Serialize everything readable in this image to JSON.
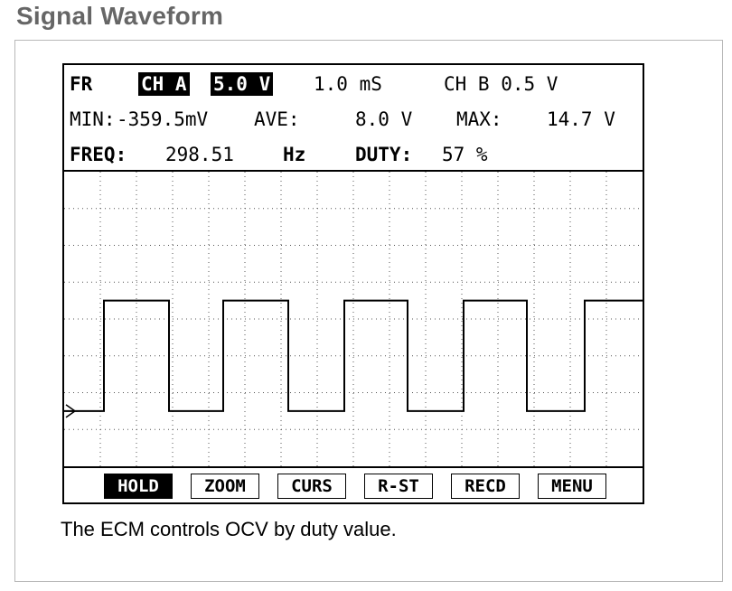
{
  "page": {
    "title": "Signal Waveform",
    "caption": "The ECM controls OCV by duty value."
  },
  "scope": {
    "status": {
      "mode": "FR",
      "channel_a": "CH A",
      "channel_a_volts": "5.0 V",
      "timebase": "1.0 mS",
      "channel_b": "CH B 0.5 V"
    },
    "readings": {
      "min_label": "MIN:",
      "min_value": "-359.5mV",
      "ave_label": "AVE:",
      "ave_value": "8.0 V",
      "max_label": "MAX:",
      "max_value": "14.7 V",
      "freq_label": "FREQ:",
      "freq_value": "298.51",
      "freq_unit": "Hz",
      "duty_label": "DUTY:",
      "duty_value": "57 %"
    },
    "softkeys": [
      {
        "label": "HOLD",
        "active": true
      },
      {
        "label": "ZOOM",
        "active": false
      },
      {
        "label": "CURS",
        "active": false
      },
      {
        "label": "R-ST",
        "active": false
      },
      {
        "label": "RECD",
        "active": false
      },
      {
        "label": "MENU",
        "active": false
      }
    ],
    "waveform": {
      "type": "square",
      "divisions_x": 16,
      "divisions_y": 8,
      "low_level_div": 1.5,
      "high_level_div": 4.5,
      "trace": [
        [
          0,
          "low"
        ],
        [
          1.1,
          "low"
        ],
        [
          1.1,
          "high"
        ],
        [
          2.9,
          "high"
        ],
        [
          2.9,
          "low"
        ],
        [
          4.4,
          "low"
        ],
        [
          4.4,
          "high"
        ],
        [
          6.2,
          "high"
        ],
        [
          6.2,
          "low"
        ],
        [
          7.75,
          "low"
        ],
        [
          7.75,
          "high"
        ],
        [
          9.5,
          "high"
        ],
        [
          9.5,
          "low"
        ],
        [
          11.05,
          "low"
        ],
        [
          11.05,
          "high"
        ],
        [
          12.8,
          "high"
        ],
        [
          12.8,
          "low"
        ],
        [
          14.4,
          "low"
        ],
        [
          14.4,
          "high"
        ],
        [
          16,
          "high"
        ]
      ],
      "colors": {
        "trace": "#000000",
        "grid": "#555555"
      }
    }
  }
}
